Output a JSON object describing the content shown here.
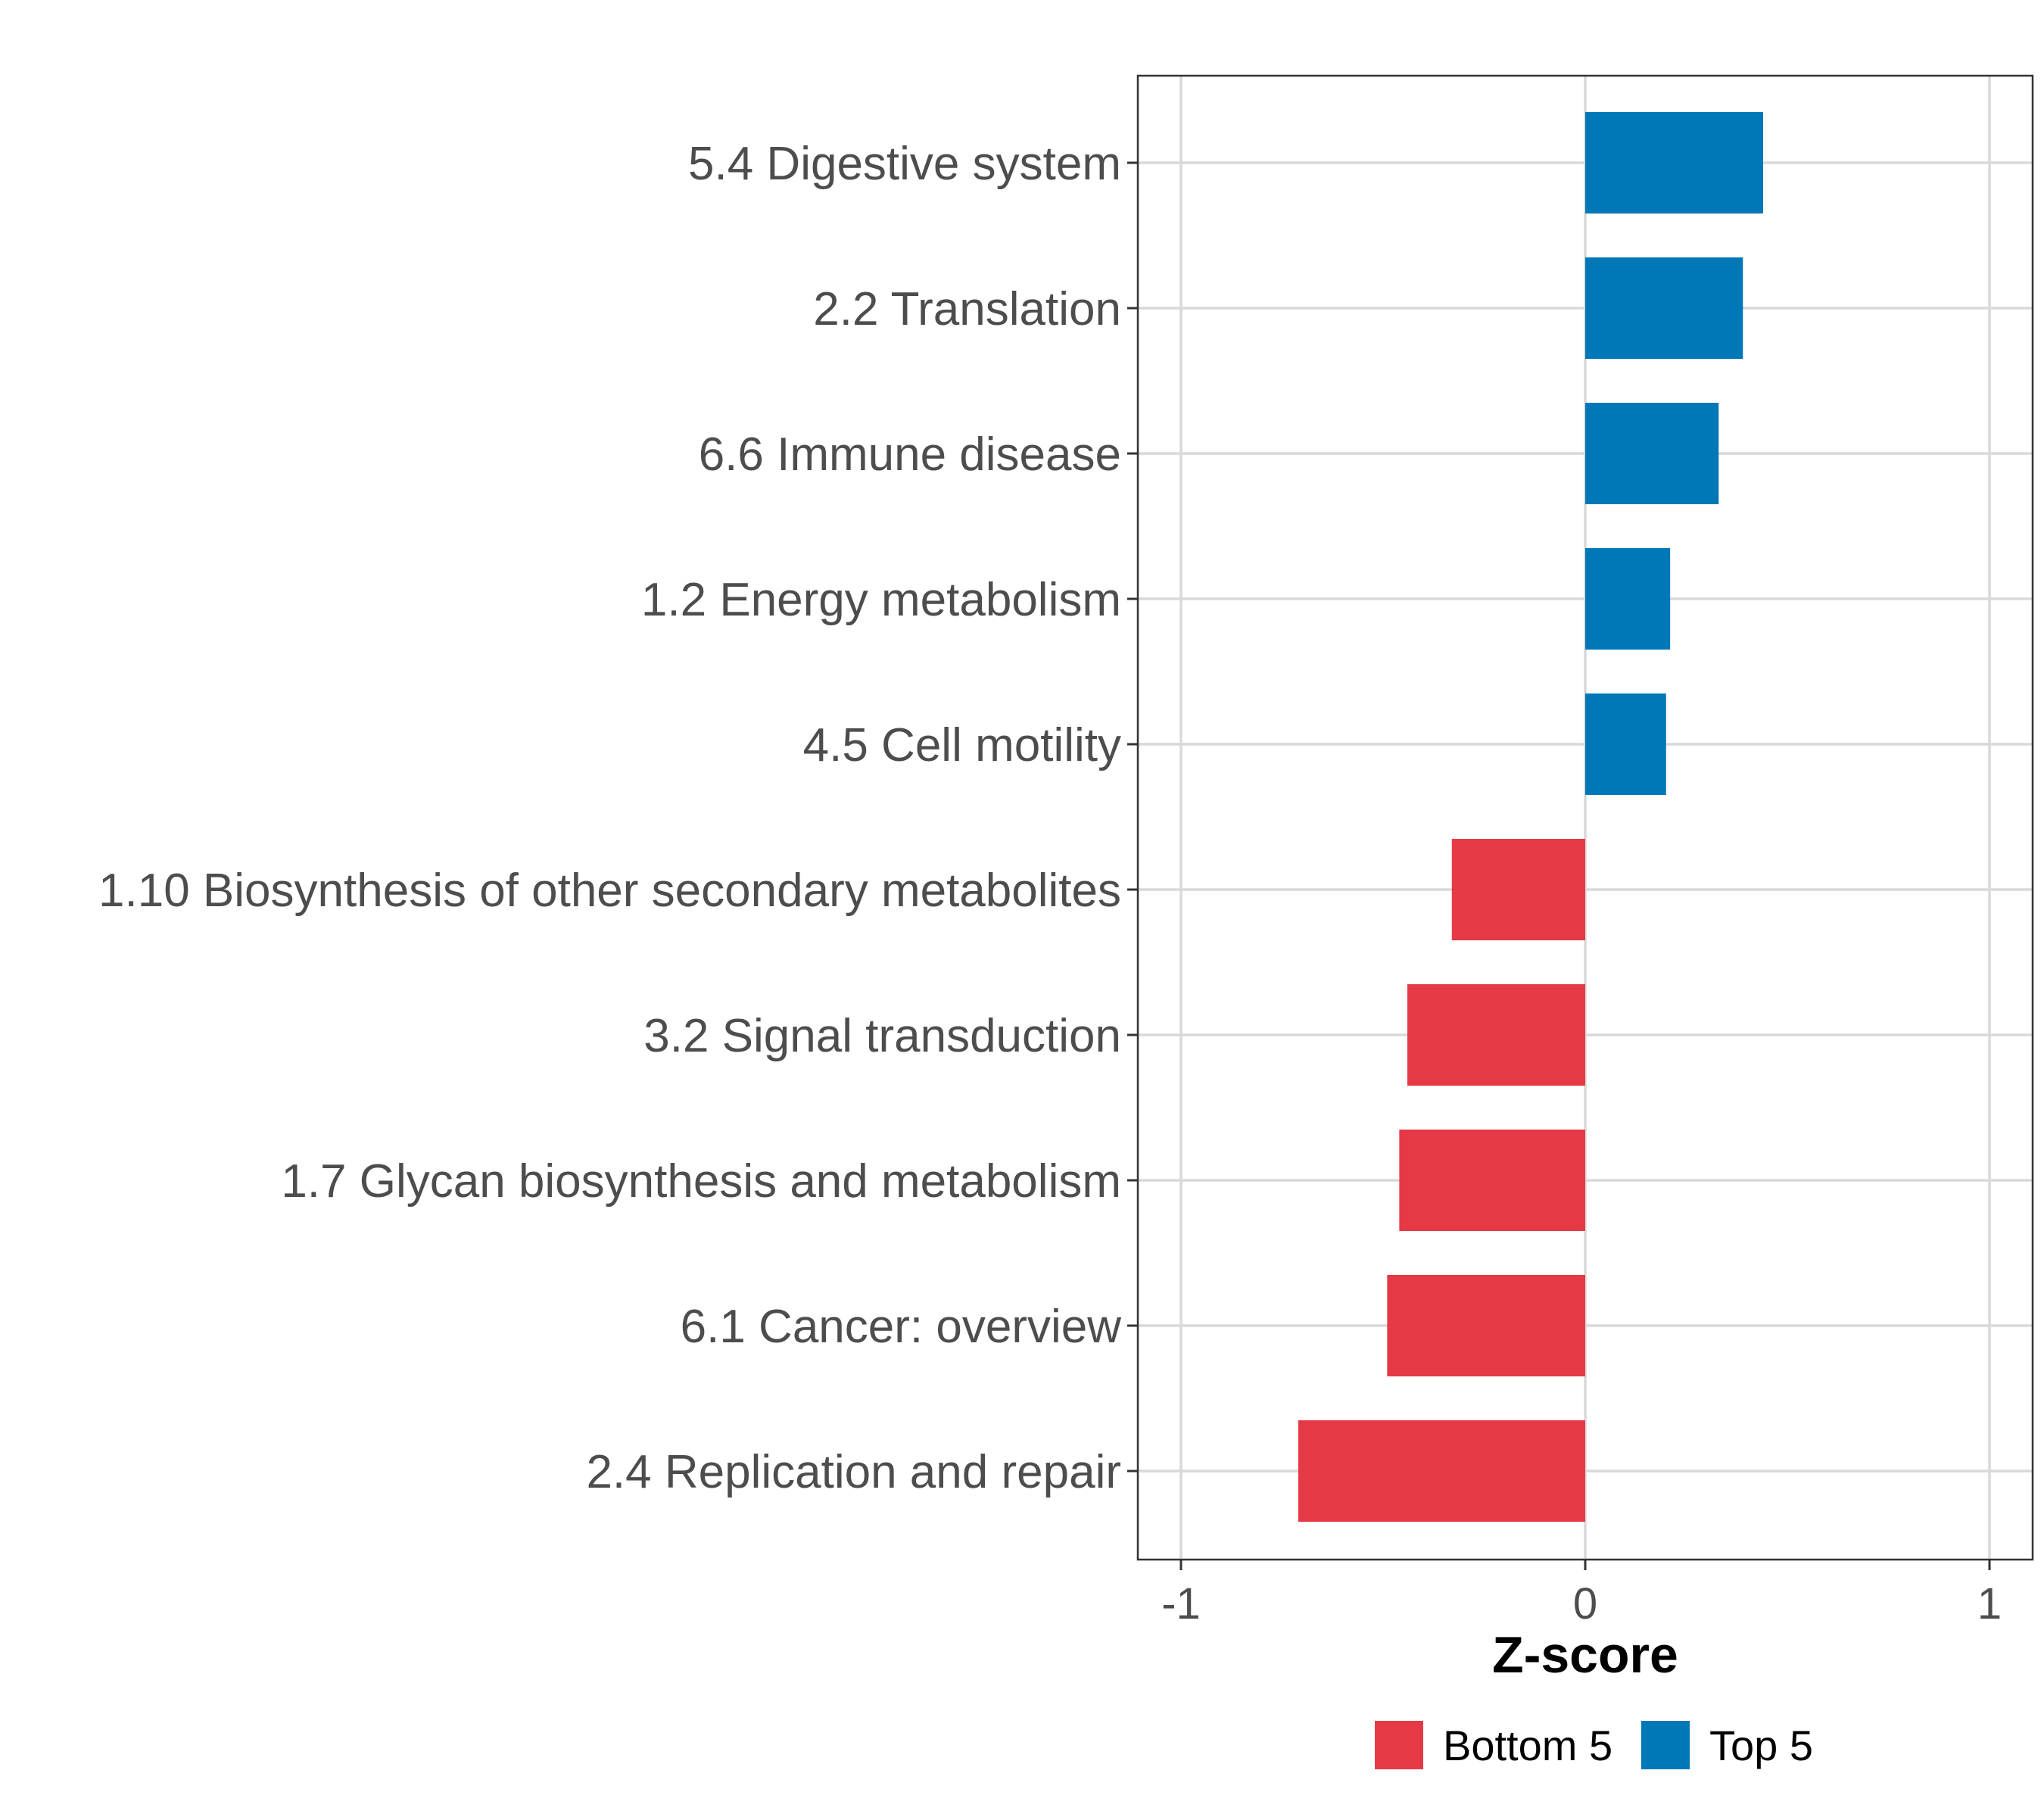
{
  "chart_data": {
    "type": "bar",
    "orientation": "horizontal",
    "title": "",
    "xlabel": "Z-score",
    "ylabel": "",
    "xlim": [
      -1.06,
      1.11
    ],
    "xticks": [
      -1,
      0,
      1
    ],
    "xtick_labels": [
      "-1",
      "0",
      "1"
    ],
    "grid": true,
    "legend_position": "bottom",
    "categories": [
      "5.4 Digestive system",
      "2.2 Translation",
      "6.6 Immune disease",
      "1.2 Energy metabolism",
      "4.5 Cell motility",
      "1.10 Biosynthesis of other secondary metabolites",
      "3.2 Signal transduction",
      "1.7 Glycan biosynthesis and metabolism",
      "6.1 Cancer: overview",
      "2.4 Replication and repair"
    ],
    "values": [
      0.44,
      0.39,
      0.33,
      0.21,
      0.2,
      -0.33,
      -0.44,
      -0.46,
      -0.49,
      -0.71
    ],
    "groups": [
      "Top 5",
      "Top 5",
      "Top 5",
      "Top 5",
      "Top 5",
      "Bottom 5",
      "Bottom 5",
      "Bottom 5",
      "Bottom 5",
      "Bottom 5"
    ],
    "legend": [
      {
        "name": "Bottom 5",
        "color": "#E63946"
      },
      {
        "name": "Top 5",
        "color": "#0077B6"
      }
    ]
  }
}
